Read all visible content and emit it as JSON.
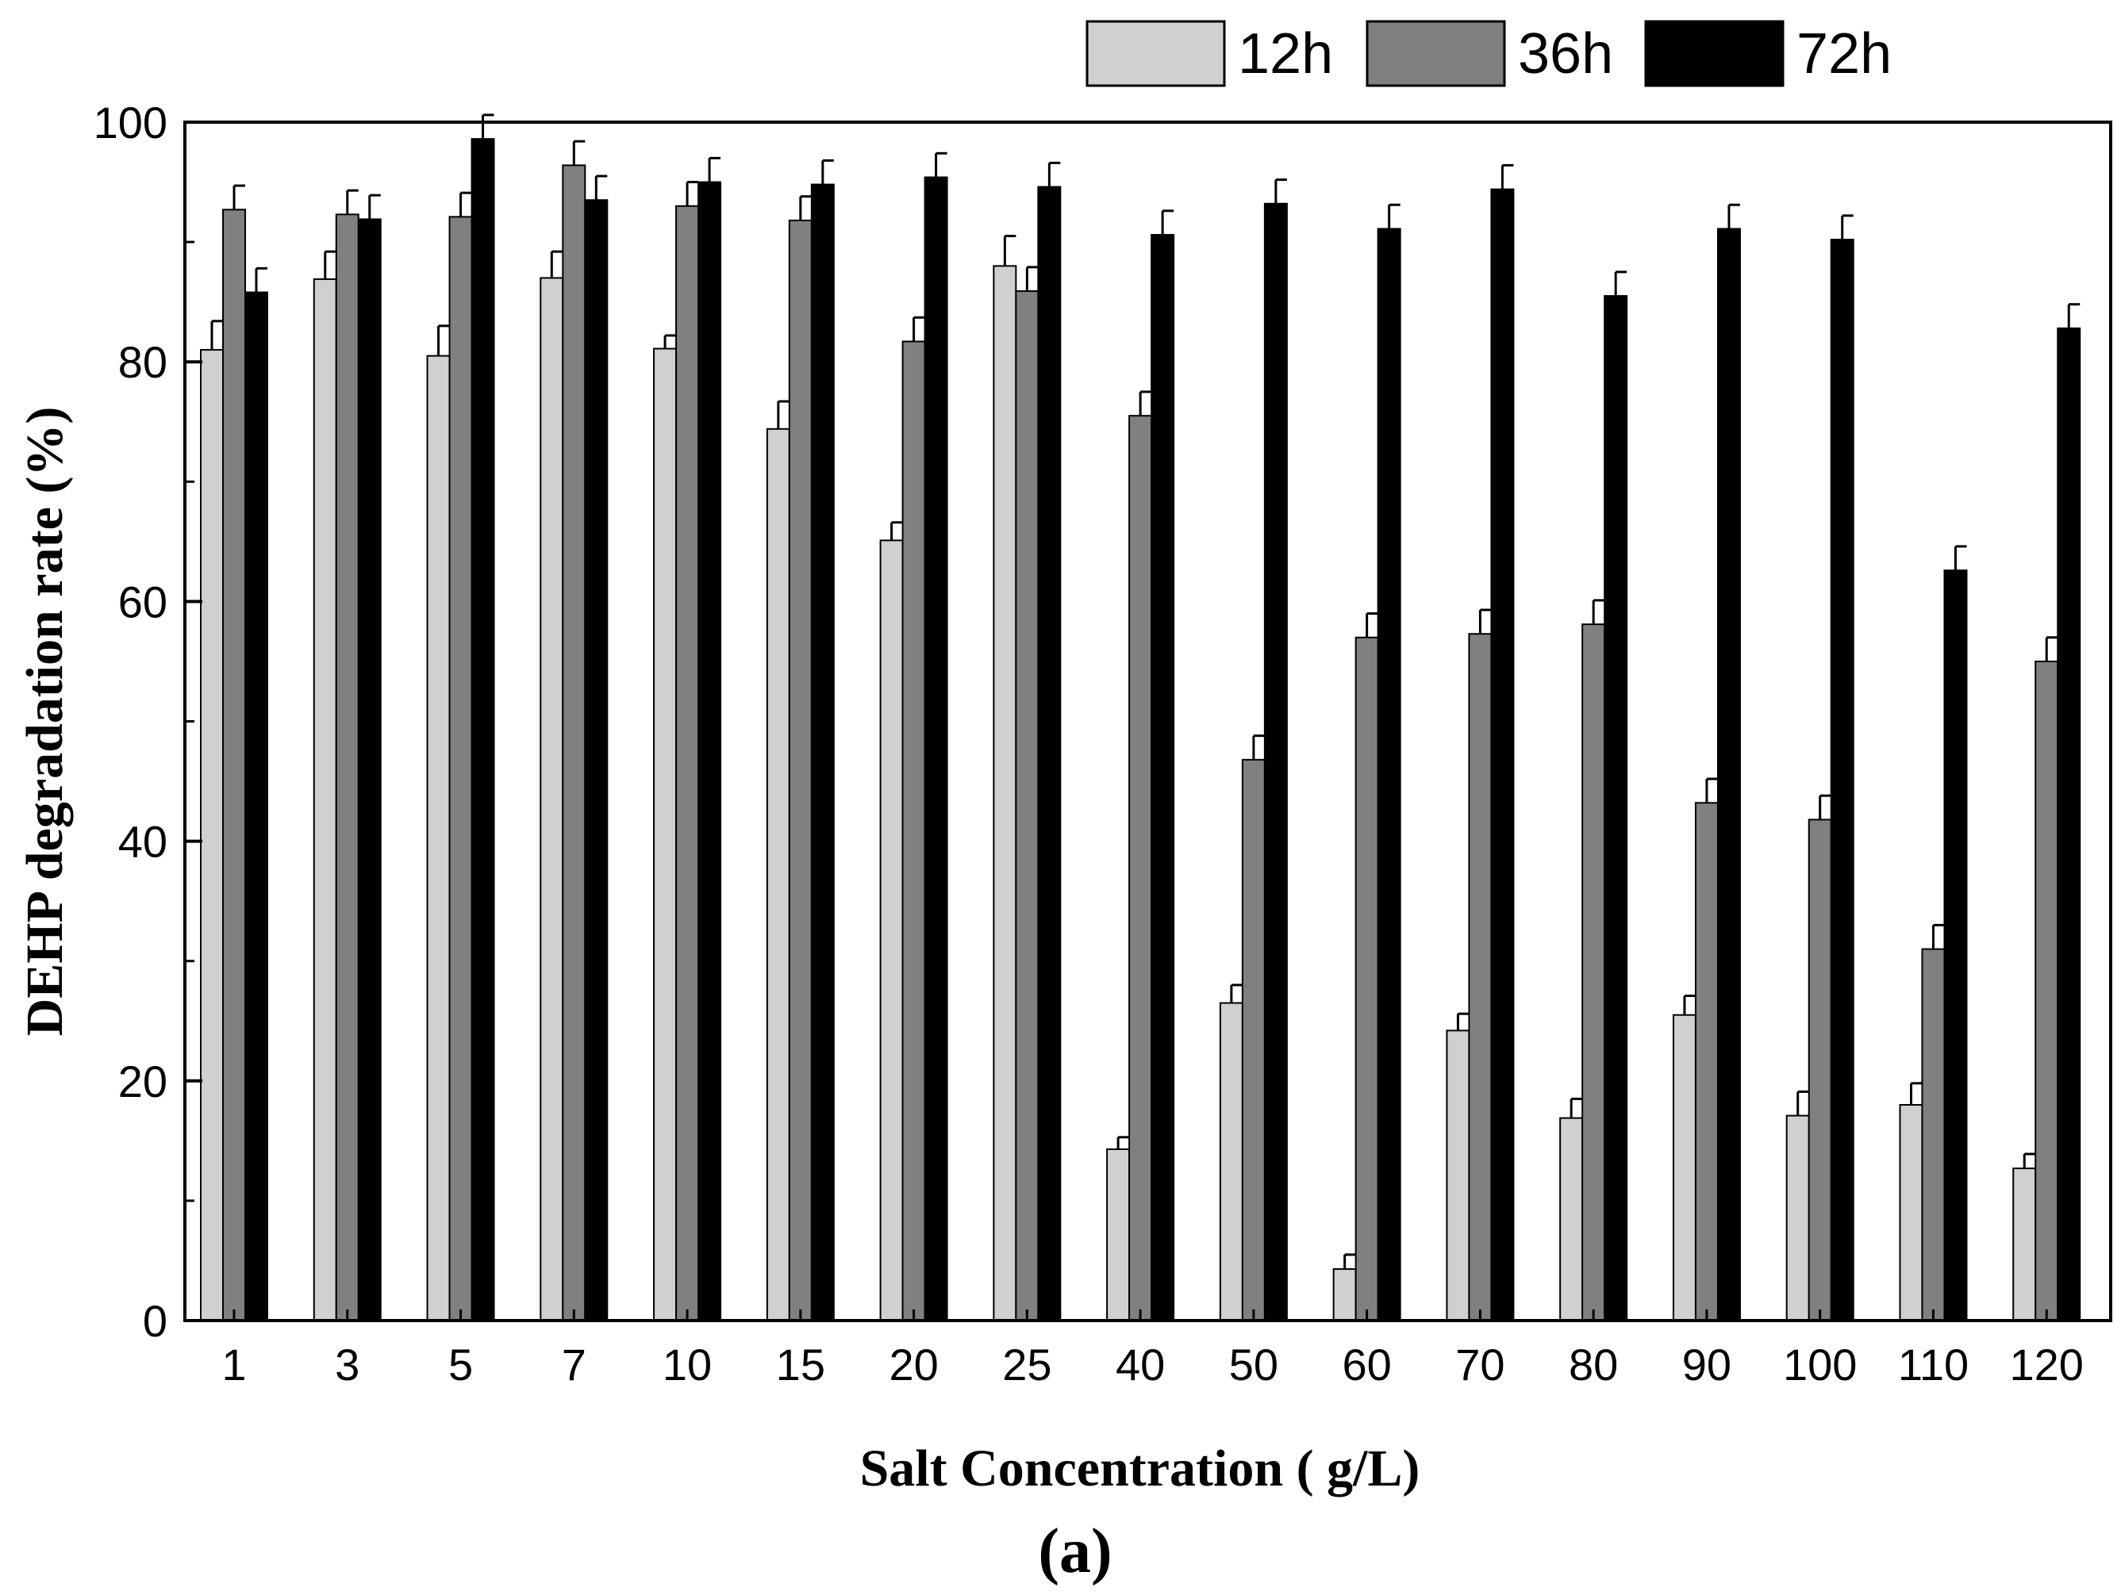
{
  "chart_data": {
    "type": "bar",
    "title": "",
    "xlabel": "Salt Concentration ( g/L)",
    "ylabel": "DEHP degradation rate (%)",
    "panel_label": "(a)",
    "ylim": [
      0,
      100
    ],
    "yticks": [
      0,
      20,
      40,
      60,
      80,
      100
    ],
    "legend_position": "top-right",
    "categories": [
      "1",
      "3",
      "5",
      "7",
      "10",
      "15",
      "20",
      "25",
      "40",
      "50",
      "60",
      "70",
      "80",
      "90",
      "100",
      "110",
      "120"
    ],
    "series": [
      {
        "name": "12h",
        "color": "#d0d0d0",
        "values": [
          81.0,
          86.9,
          80.5,
          87.0,
          81.1,
          74.4,
          65.1,
          88.0,
          14.3,
          26.5,
          4.3,
          24.2,
          16.9,
          25.5,
          17.1,
          18.0,
          12.7
        ],
        "errors": [
          2.4,
          2.3,
          2.5,
          2.2,
          1.1,
          2.3,
          1.5,
          2.5,
          1.0,
          1.5,
          1.2,
          1.4,
          1.6,
          1.6,
          2.0,
          1.8,
          1.2
        ]
      },
      {
        "name": "36h",
        "color": "#808080",
        "values": [
          92.7,
          92.3,
          92.1,
          96.4,
          93.0,
          91.8,
          81.7,
          85.9,
          75.5,
          46.8,
          57.0,
          57.3,
          58.1,
          43.2,
          41.8,
          31.0,
          55.0
        ]
      },
      {
        "name": "72h",
        "color": "#000000",
        "values": [
          85.8,
          91.9,
          98.6,
          93.5,
          95.0,
          94.8,
          95.4,
          94.6,
          90.6,
          93.2,
          91.1,
          94.4,
          85.5,
          91.1,
          90.2,
          62.6,
          82.8
        ]
      }
    ]
  }
}
